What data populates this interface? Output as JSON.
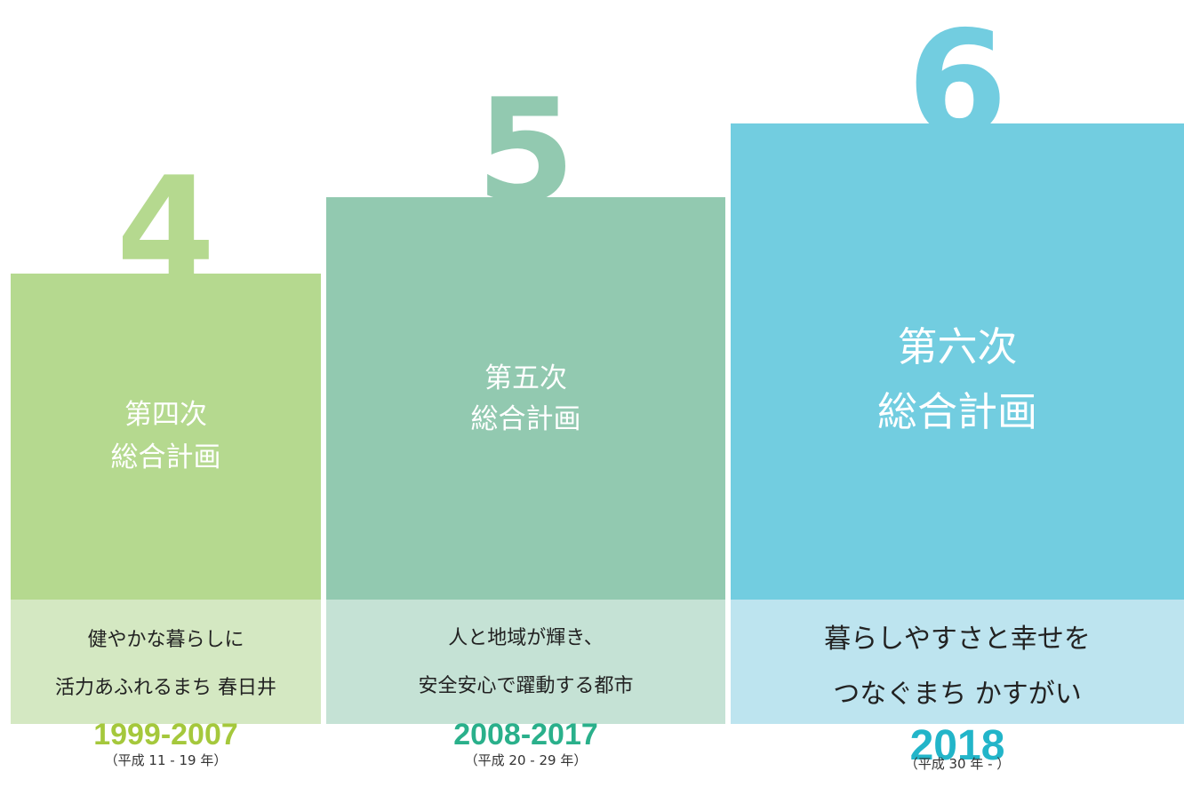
{
  "columns": [
    {
      "number": "4",
      "title": [
        "第四次",
        "総合計画"
      ],
      "slogan": [
        "健やかな暮らしに",
        "活力あふれるまち 春日井"
      ],
      "years": "1999-2007",
      "era": "（平成 11 - 19 年）"
    },
    {
      "number": "5",
      "title": [
        "第五次",
        "総合計画"
      ],
      "slogan": [
        "人と地域が輝き、",
        "安全安心で躍動する都市"
      ],
      "years": "2008-2017",
      "era": "（平成 20 - 29 年）"
    },
    {
      "number": "6",
      "title": [
        "第六次",
        "総合計画"
      ],
      "slogan": [
        "暮らしやすさと幸せを",
        "つなぐまち かすがい"
      ],
      "years": "2018",
      "era": "（平成 30 年 - ）"
    }
  ]
}
